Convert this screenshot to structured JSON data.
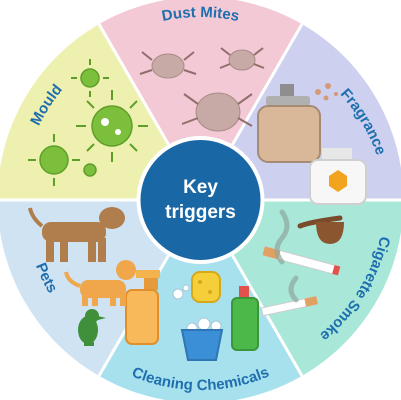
{
  "center": {
    "line1": "Key",
    "line2": "triggers"
  },
  "segments": [
    {
      "label": "Dust Mites",
      "color": "#f3c9d6"
    },
    {
      "label": "Fragrance",
      "color": "#cdd0ee"
    },
    {
      "label": "Cigarette Smoke",
      "color": "#a9e8d9"
    },
    {
      "label": "Cleaning Chemicals",
      "color": "#a7e1ee"
    },
    {
      "label": "Pets",
      "color": "#cfe3f3"
    },
    {
      "label": "Mould",
      "color": "#eef0b0"
    }
  ],
  "colors": {
    "center": "#1a67a6",
    "label": "#1f6fae",
    "divider": "#ffffff"
  }
}
